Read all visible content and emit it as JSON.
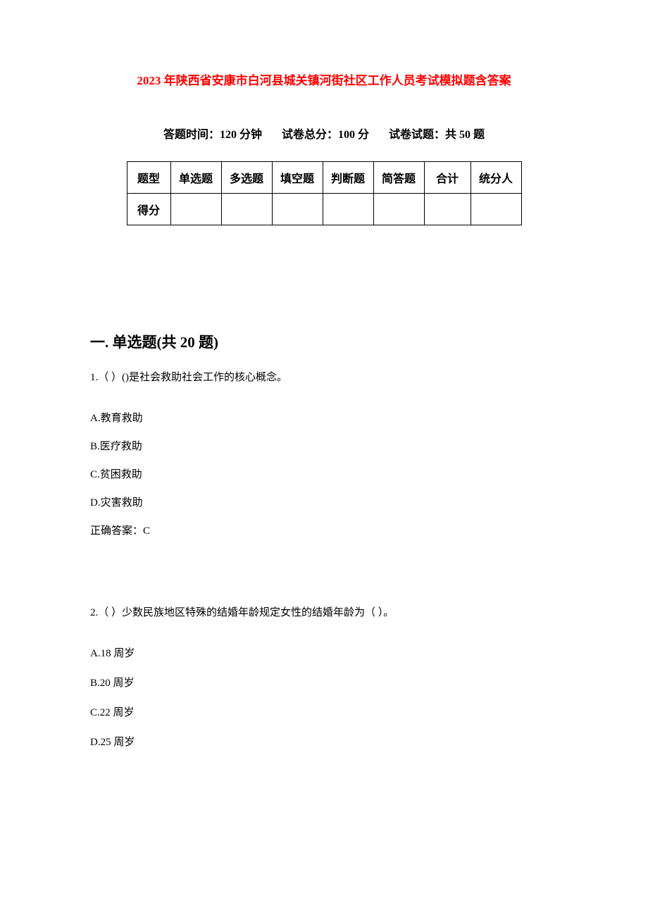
{
  "title": "2023 年陕西省安康市白河县城关镇河街社区工作人员考试模拟题含答案",
  "info": {
    "time_label": "答题时间：",
    "time_value": "120 分钟",
    "total_label": "试卷总分：",
    "total_value": "100 分",
    "count_label": "试卷试题：",
    "count_value": "共 50 题"
  },
  "table": {
    "row1": [
      "题型",
      "单选题",
      "多选题",
      "填空题",
      "判断题",
      "简答题",
      "合计",
      "统分人"
    ],
    "row2_label": "得分"
  },
  "section1": {
    "heading": "一. 单选题(共 20 题)",
    "q1": {
      "text": "1.（ ）()是社会救助社会工作的核心概念。",
      "options": {
        "a": "A.教育救助",
        "b": "B.医疗救助",
        "c": "C.贫困救助",
        "d": "D.灾害救助"
      },
      "answer": "正确答案：C"
    },
    "q2": {
      "text": "2.（ ）少数民族地区特殊的结婚年龄规定女性的结婚年龄为（ ）。",
      "options": {
        "a": "A.18 周岁",
        "b": "B.20 周岁",
        "c": "C.22 周岁",
        "d": "D.25  周岁"
      }
    }
  },
  "colors": {
    "title_color": "#ff0000",
    "text_color": "#000000",
    "background_color": "#ffffff",
    "border_color": "#000000"
  },
  "typography": {
    "title_fontsize": 17,
    "info_fontsize": 16,
    "heading_fontsize": 21,
    "body_fontsize": 15,
    "table_fontsize": 16
  }
}
